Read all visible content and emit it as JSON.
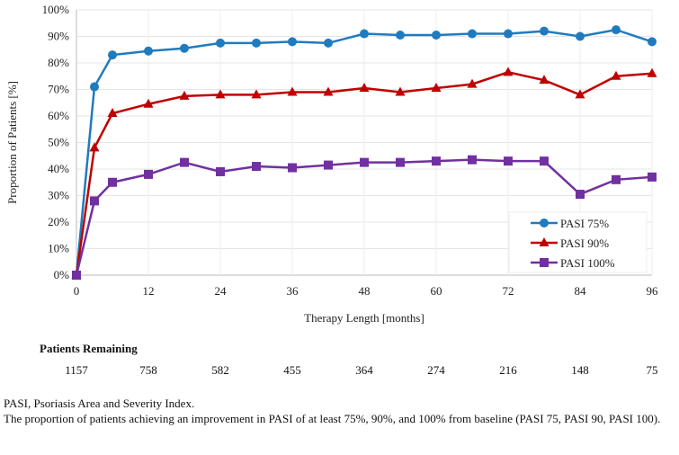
{
  "chart_data": {
    "type": "line",
    "xlabel": "Therapy Length [months]",
    "ylabel": "Proportion of Patients [%]",
    "xlim": [
      0,
      96
    ],
    "ylim": [
      0,
      100
    ],
    "x_ticks": [
      "0",
      "12",
      "24",
      "36",
      "48",
      "60",
      "72",
      "84",
      "96"
    ],
    "y_ticks": [
      "0%",
      "10%",
      "20%",
      "30%",
      "40%",
      "50%",
      "60%",
      "70%",
      "80%",
      "90%",
      "100%"
    ],
    "grid": true,
    "legend_position": "bottom-right",
    "x": [
      0,
      3,
      6,
      12,
      18,
      24,
      30,
      36,
      42,
      48,
      54,
      60,
      66,
      72,
      78,
      84,
      90,
      96
    ],
    "series": [
      {
        "name": "PASI 75%",
        "color": "#1f7bbf",
        "marker": "circle",
        "values": [
          0,
          71,
          83,
          84.5,
          85.5,
          87.5,
          87.5,
          88,
          87.5,
          91,
          90.5,
          90.5,
          91,
          91,
          92,
          90,
          92.5,
          88
        ]
      },
      {
        "name": "PASI 90%",
        "color": "#c00000",
        "marker": "triangle",
        "values": [
          0,
          48,
          61,
          64.5,
          67.5,
          68,
          68,
          69,
          69,
          70.5,
          69,
          70.5,
          72,
          76.5,
          73.5,
          68,
          75,
          76
        ]
      },
      {
        "name": "PASI 100%",
        "color": "#7030a0",
        "marker": "square",
        "values": [
          0,
          28,
          35,
          38,
          42.5,
          39,
          41,
          40.5,
          41.5,
          42.5,
          42.5,
          43,
          43.5,
          43,
          43,
          30.5,
          36,
          37
        ]
      }
    ]
  },
  "remaining": {
    "title": "Patients Remaining",
    "values": [
      "1157",
      "758",
      "582",
      "455",
      "364",
      "274",
      "216",
      "148",
      "75"
    ]
  },
  "notes": {
    "line1": "PASI, Psoriasis Area and Severity Index.",
    "line2": "The proportion of patients achieving an improvement in PASI of at least 75%, 90%, and 100% from baseline (PASI 75, PASI 90, PASI 100)."
  }
}
